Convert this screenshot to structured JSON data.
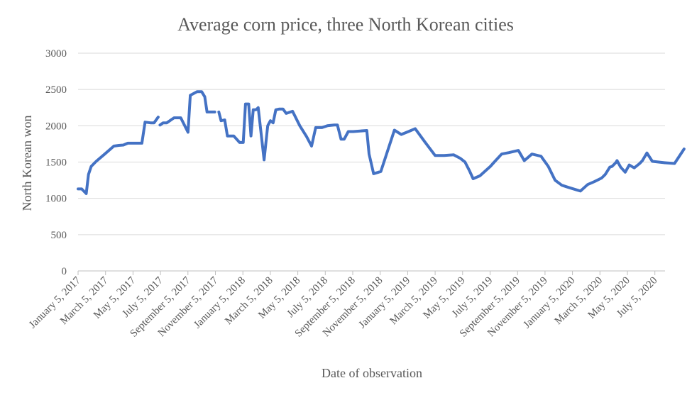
{
  "chart_data": {
    "type": "line",
    "title": "Average corn price, three North Korean cities",
    "xlabel": "Date of observation",
    "ylabel": "North Korean won",
    "ylim": [
      0,
      3000
    ],
    "y_ticks": [
      0,
      500,
      1000,
      1500,
      2000,
      2500,
      3000
    ],
    "x_ticks": [
      "January 5, 2017",
      "March 5, 2017",
      "May 5, 2017",
      "July 5, 2017",
      "September 5, 2017",
      "November 5, 2017",
      "January 5, 2018",
      "March 5, 2018",
      "May 5, 2018",
      "July 5, 2018",
      "September 5, 2018",
      "November 5, 2018",
      "January 5, 2019",
      "March 5, 2019",
      "May 5, 2019",
      "July 5, 2019",
      "September 5, 2019",
      "November 5, 2019",
      "January 5, 2020",
      "March 5, 2020",
      "May 5, 2020",
      "July 5, 2020"
    ],
    "x_range": [
      "2017-01-05",
      "2020-07-25"
    ],
    "grid": true,
    "legend": "none",
    "series": [
      {
        "color": "#4472c4",
        "segments": [
          [
            [
              "2017-01-05",
              1130
            ],
            [
              "2017-01-13",
              1130
            ],
            [
              "2017-01-23",
              1065
            ],
            [
              "2017-01-28",
              1330
            ],
            [
              "2017-02-03",
              1440
            ],
            [
              "2017-02-14",
              1510
            ],
            [
              "2017-03-05",
              1610
            ],
            [
              "2017-03-25",
              1720
            ],
            [
              "2017-04-05",
              1730
            ],
            [
              "2017-04-15",
              1735
            ],
            [
              "2017-04-25",
              1760
            ],
            [
              "2017-05-15",
              1760
            ],
            [
              "2017-05-26",
              1760
            ],
            [
              "2017-06-02",
              2050
            ],
            [
              "2017-06-14",
              2040
            ],
            [
              "2017-06-22",
              2040
            ],
            [
              "2017-07-01",
              2120
            ]
          ],
          [
            [
              "2017-07-05",
              2010
            ],
            [
              "2017-07-12",
              2040
            ],
            [
              "2017-07-20",
              2040
            ],
            [
              "2017-08-05",
              2110
            ],
            [
              "2017-08-20",
              2110
            ],
            [
              "2017-09-05",
              1910
            ],
            [
              "2017-09-10",
              2420
            ],
            [
              "2017-09-25",
              2470
            ],
            [
              "2017-10-05",
              2470
            ],
            [
              "2017-10-12",
              2400
            ],
            [
              "2017-10-17",
              2190
            ],
            [
              "2017-10-25",
              2190
            ],
            [
              "2017-11-03",
              2190
            ]
          ],
          [
            [
              "2017-11-12",
              2190
            ],
            [
              "2017-11-17",
              2070
            ],
            [
              "2017-11-25",
              2080
            ],
            [
              "2017-12-01",
              1860
            ],
            [
              "2017-12-15",
              1860
            ],
            [
              "2017-12-28",
              1770
            ],
            [
              "2018-01-05",
              1770
            ],
            [
              "2018-01-10",
              2300
            ],
            [
              "2018-01-17",
              2300
            ],
            [
              "2018-01-22",
              1860
            ],
            [
              "2018-01-27",
              2220
            ],
            [
              "2018-02-02",
              2220
            ],
            [
              "2018-02-07",
              2250
            ],
            [
              "2018-02-20",
              1530
            ],
            [
              "2018-02-28",
              2000
            ],
            [
              "2018-03-06",
              2070
            ],
            [
              "2018-03-12",
              2040
            ],
            [
              "2018-03-18",
              2220
            ],
            [
              "2018-03-25",
              2230
            ],
            [
              "2018-04-03",
              2230
            ],
            [
              "2018-04-10",
              2170
            ],
            [
              "2018-04-24",
              2200
            ],
            [
              "2018-05-10",
              2000
            ],
            [
              "2018-05-25",
              1850
            ],
            [
              "2018-06-05",
              1720
            ],
            [
              "2018-06-14",
              1975
            ],
            [
              "2018-06-28",
              1975
            ],
            [
              "2018-07-10",
              2000
            ],
            [
              "2018-07-25",
              2010
            ],
            [
              "2018-08-01",
              2010
            ],
            [
              "2018-08-09",
              1815
            ],
            [
              "2018-08-16",
              1815
            ],
            [
              "2018-08-25",
              1920
            ],
            [
              "2018-09-05",
              1920
            ],
            [
              "2018-10-05",
              1935
            ],
            [
              "2018-10-10",
              1610
            ],
            [
              "2018-10-20",
              1340
            ],
            [
              "2018-11-05",
              1370
            ],
            [
              "2018-12-05",
              1940
            ],
            [
              "2018-12-20",
              1880
            ],
            [
              "2019-01-05",
              1920
            ],
            [
              "2019-01-20",
              1960
            ],
            [
              "2019-02-10",
              1780
            ],
            [
              "2019-03-05",
              1590
            ],
            [
              "2019-03-25",
              1590
            ],
            [
              "2019-04-15",
              1600
            ],
            [
              "2019-04-30",
              1550
            ],
            [
              "2019-05-10",
              1500
            ],
            [
              "2019-05-20",
              1380
            ],
            [
              "2019-05-28",
              1270
            ],
            [
              "2019-06-12",
              1310
            ],
            [
              "2019-07-05",
              1440
            ],
            [
              "2019-07-15",
              1510
            ],
            [
              "2019-07-30",
              1610
            ],
            [
              "2019-08-15",
              1630
            ],
            [
              "2019-09-05",
              1660
            ],
            [
              "2019-09-18",
              1520
            ],
            [
              "2019-10-05",
              1610
            ],
            [
              "2019-10-25",
              1580
            ],
            [
              "2019-11-10",
              1440
            ],
            [
              "2019-11-25",
              1250
            ],
            [
              "2019-12-10",
              1180
            ],
            [
              "2019-12-25",
              1150
            ],
            [
              "2020-01-10",
              1120
            ],
            [
              "2020-01-20",
              1100
            ],
            [
              "2020-02-05",
              1190
            ],
            [
              "2020-02-20",
              1230
            ],
            [
              "2020-03-07",
              1280
            ],
            [
              "2020-03-15",
              1330
            ],
            [
              "2020-03-25",
              1430
            ],
            [
              "2020-03-30",
              1440
            ],
            [
              "2020-04-07",
              1490
            ],
            [
              "2020-04-10",
              1520
            ],
            [
              "2020-04-18",
              1430
            ],
            [
              "2020-04-28",
              1360
            ],
            [
              "2020-05-07",
              1460
            ],
            [
              "2020-05-18",
              1420
            ],
            [
              "2020-05-30",
              1480
            ],
            [
              "2020-06-05",
              1520
            ],
            [
              "2020-06-15",
              1625
            ],
            [
              "2020-06-27",
              1510
            ],
            [
              "2020-07-25",
              1490
            ]
          ],
          [
            [
              "2020-07-25",
              1490
            ],
            [
              "2020-08-15",
              1480
            ],
            [
              "2020-09-05",
              1680
            ]
          ]
        ]
      }
    ]
  }
}
